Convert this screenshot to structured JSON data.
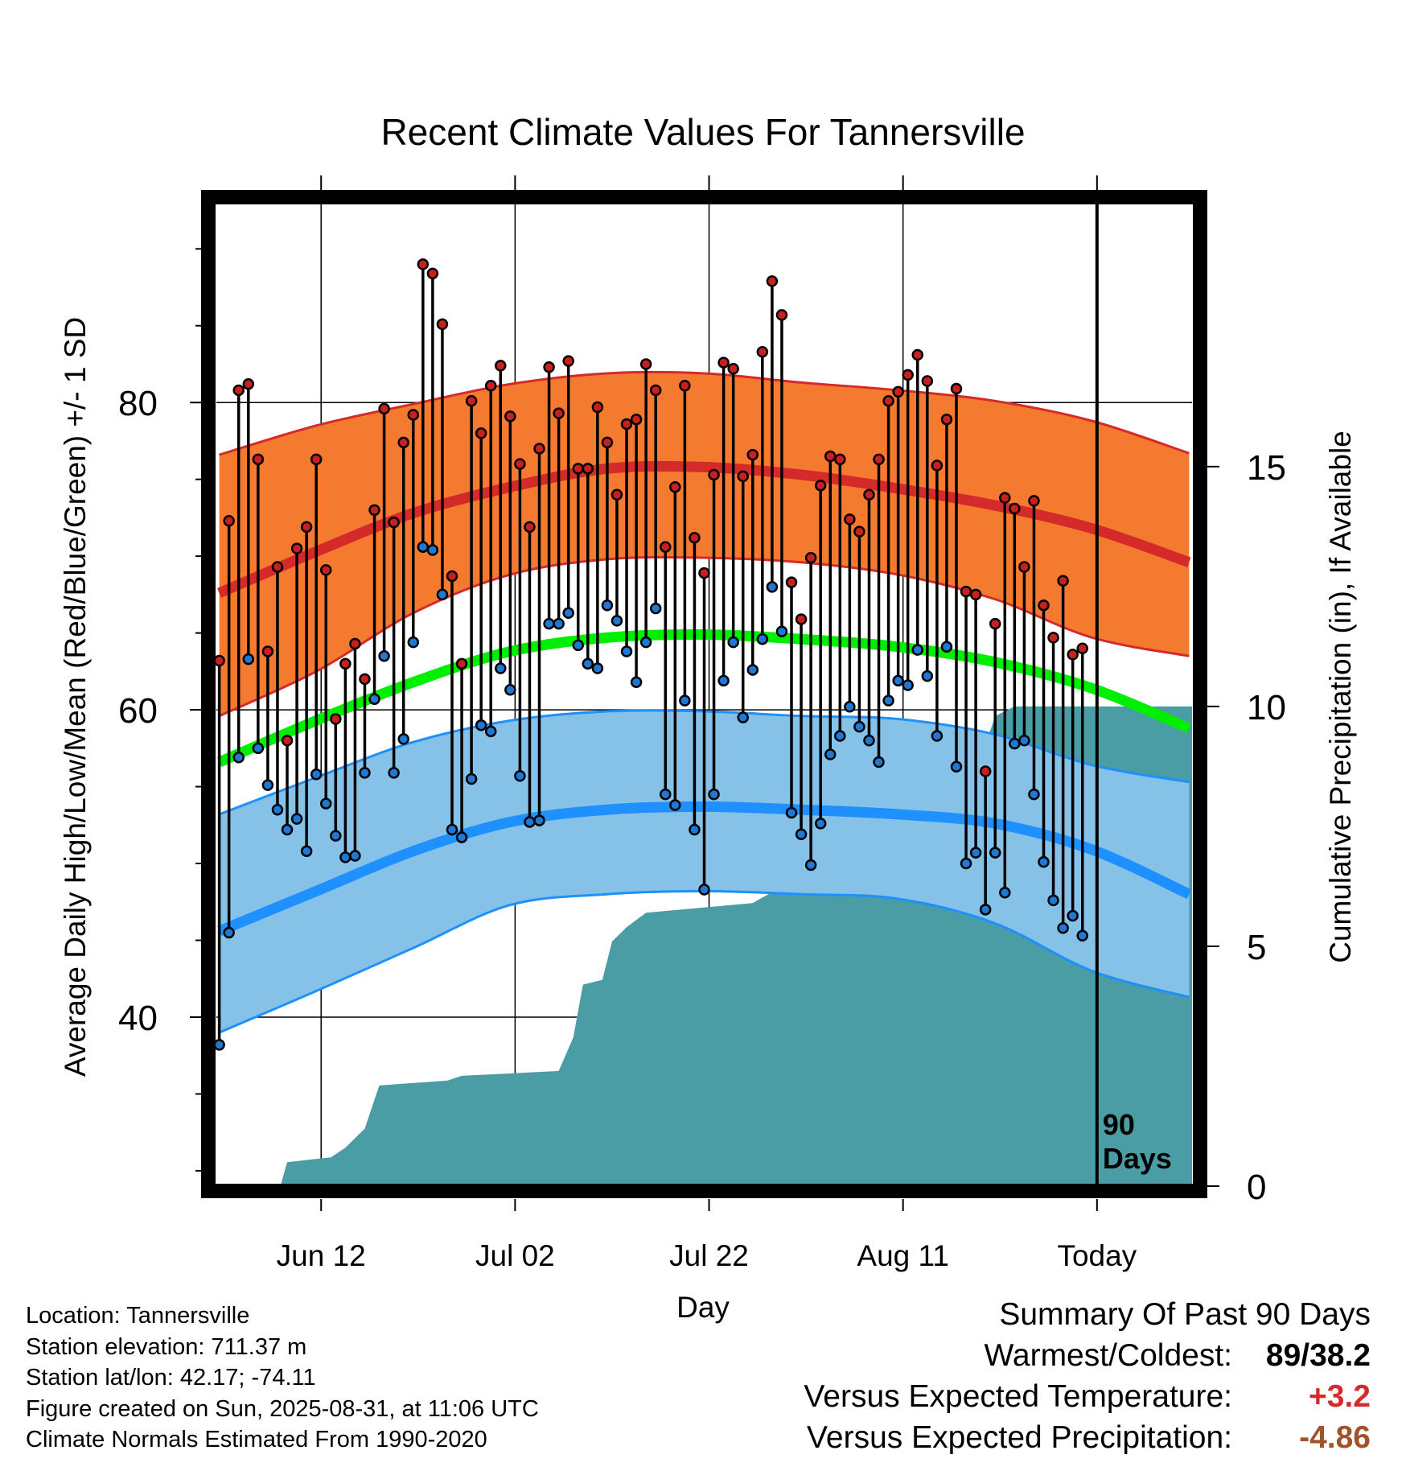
{
  "chart_data": {
    "type": "line",
    "title": "Recent Climate Values For Tannersville",
    "xlabel": "Day",
    "ylabel": "Average Daily High/Low/Mean (Red/Blue/Green) +/- 1 SD",
    "y2label": "Cumulative Precipitation (in), If Available",
    "ylim": [
      29,
      93
    ],
    "y2lim": [
      0,
      20.5
    ],
    "xlim": [
      -0.3,
      100.3
    ],
    "y_ticks": [
      40,
      60,
      80
    ],
    "y_ticks_minor": [
      30,
      35,
      45,
      50,
      55,
      65,
      70,
      75,
      85,
      90
    ],
    "y2_ticks": [
      0,
      5,
      10,
      15
    ],
    "x_ticks": [
      {
        "day": 10.5,
        "label": "Jun 12"
      },
      {
        "day": 30.5,
        "label": "Jul 02"
      },
      {
        "day": 50.5,
        "label": "Jul 22"
      },
      {
        "day": 70.5,
        "label": "Aug 11"
      },
      {
        "day": 90.5,
        "label": "Today"
      }
    ],
    "today_label": "90\nDays",
    "grid": true,
    "colors": {
      "high_band": "#f47a30",
      "high_line": "#d42a2a",
      "low_band": "#86c1e8",
      "low_line": "#1e90ff",
      "mean_line": "#00ee00",
      "precip": "#4a9ca5",
      "high_point": "#c8201e",
      "low_point": "#1e78d4"
    },
    "normal_days": [
      0,
      10,
      20,
      30,
      40,
      50,
      60,
      70,
      80,
      90,
      100
    ],
    "normal_high": [
      67.6,
      70.3,
      72.8,
      74.5,
      75.7,
      75.8,
      75.3,
      74.4,
      73.3,
      71.8,
      69.6
    ],
    "normal_high_upper": [
      76.6,
      78.5,
      79.9,
      81.2,
      81.9,
      81.9,
      81.3,
      80.8,
      80.1,
      78.8,
      76.7
    ],
    "normal_high_lower": [
      59.6,
      62.5,
      66.3,
      68.8,
      69.8,
      69.9,
      69.6,
      68.8,
      67.2,
      64.7,
      63.5
    ],
    "normal_mean": [
      56.6,
      59.3,
      61.8,
      63.8,
      64.7,
      64.9,
      64.6,
      64.1,
      63.1,
      61.4,
      58.8
    ],
    "normal_low": [
      45.6,
      48.2,
      50.8,
      52.7,
      53.5,
      53.7,
      53.5,
      53.2,
      52.6,
      50.9,
      48.0
    ],
    "normal_low_upper": [
      53.2,
      55.6,
      57.9,
      59.3,
      59.9,
      59.9,
      59.6,
      59.4,
      58.4,
      56.4,
      55.3
    ],
    "normal_low_lower": [
      39.0,
      41.7,
      44.5,
      47.3,
      48.0,
      48.2,
      48.0,
      47.7,
      46.1,
      43.0,
      41.3
    ],
    "highs": [
      63.2,
      72.3,
      80.8,
      81.2,
      76.3,
      63.8,
      69.3,
      58.0,
      70.5,
      71.9,
      76.3,
      69.1,
      59.4,
      63.0,
      64.3,
      62.0,
      73.0,
      79.6,
      72.2,
      77.4,
      79.2,
      89.0,
      88.4,
      85.1,
      68.7,
      63.0,
      80.1,
      78.0,
      81.1,
      82.4,
      79.1,
      76.0,
      71.9,
      77.0,
      82.3,
      79.3,
      82.7,
      75.7,
      75.7,
      79.7,
      77.4,
      74.0,
      78.6,
      78.9,
      82.5,
      80.8,
      70.6,
      74.5,
      81.1,
      71.2,
      68.9,
      75.3,
      82.6,
      82.2,
      75.2,
      76.6,
      83.3,
      87.9,
      85.7,
      68.3,
      65.9,
      69.9,
      74.6,
      76.5,
      76.3,
      72.4,
      71.6,
      74.0,
      76.3,
      80.1,
      80.7,
      81.8,
      83.1,
      81.4,
      75.9,
      78.9,
      80.9,
      67.7,
      67.5,
      56.0,
      65.6,
      73.8,
      73.1,
      69.3,
      73.6,
      66.8,
      64.7,
      68.4,
      63.6,
      64.0
    ],
    "lows": [
      38.2,
      45.5,
      56.9,
      63.3,
      57.5,
      55.1,
      53.5,
      52.2,
      52.9,
      50.8,
      55.8,
      53.9,
      51.8,
      50.4,
      50.5,
      55.9,
      60.7,
      63.5,
      55.9,
      58.1,
      64.4,
      70.6,
      70.4,
      67.5,
      52.2,
      51.7,
      55.5,
      59.0,
      58.6,
      62.7,
      61.3,
      55.7,
      52.7,
      52.8,
      65.6,
      65.6,
      66.3,
      64.2,
      63.0,
      62.7,
      66.8,
      65.8,
      63.8,
      61.8,
      64.4,
      66.6,
      54.5,
      53.8,
      60.6,
      52.2,
      48.3,
      54.5,
      61.9,
      64.4,
      59.5,
      62.6,
      64.6,
      68.0,
      65.1,
      53.3,
      51.9,
      49.9,
      52.6,
      57.1,
      58.3,
      60.2,
      58.9,
      58.0,
      56.6,
      60.6,
      61.9,
      61.6,
      63.9,
      62.2,
      58.3,
      64.1,
      56.3,
      50.0,
      50.7,
      47.0,
      50.7,
      48.1,
      57.8,
      58.0,
      54.5,
      50.1,
      47.6,
      45.8,
      46.6,
      45.3
    ],
    "precip_cumulative": [
      {
        "day": 6.3,
        "value": 0.0
      },
      {
        "day": 7.0,
        "value": 0.5
      },
      {
        "day": 11.5,
        "value": 0.6
      },
      {
        "day": 13.0,
        "value": 0.8
      },
      {
        "day": 15.0,
        "value": 1.2
      },
      {
        "day": 16.5,
        "value": 2.1
      },
      {
        "day": 23.5,
        "value": 2.2
      },
      {
        "day": 25.0,
        "value": 2.3
      },
      {
        "day": 35.0,
        "value": 2.4
      },
      {
        "day": 36.5,
        "value": 3.1
      },
      {
        "day": 37.5,
        "value": 4.2
      },
      {
        "day": 39.5,
        "value": 4.3
      },
      {
        "day": 40.5,
        "value": 5.1
      },
      {
        "day": 42.0,
        "value": 5.4
      },
      {
        "day": 44.0,
        "value": 5.7
      },
      {
        "day": 55.0,
        "value": 5.9
      },
      {
        "day": 58.5,
        "value": 6.3
      },
      {
        "day": 59.5,
        "value": 8.1
      },
      {
        "day": 72.0,
        "value": 8.2
      },
      {
        "day": 75.0,
        "value": 8.3
      },
      {
        "day": 75.8,
        "value": 9.1
      },
      {
        "day": 79.0,
        "value": 9.2
      },
      {
        "day": 80.0,
        "value": 9.8
      },
      {
        "day": 82.0,
        "value": 10.0
      },
      {
        "day": 100.3,
        "value": 10.0
      }
    ]
  },
  "meta": {
    "location": "Location: Tannersville",
    "elevation": "Station elevation: 711.37 m",
    "latlon": "Station lat/lon: 42.17; -74.11",
    "created": "Figure created on Sun, 2025-08-31, at 11:06 UTC",
    "normals": "Climate Normals Estimated From 1990-2020"
  },
  "summary": {
    "heading": "Summary Of Past 90 Days",
    "warm_cold_label": "Warmest/Coldest:",
    "warm_cold_value": "89/38.2",
    "temp_label": "Versus Expected Temperature:",
    "temp_value": "+3.2",
    "temp_color": "#d42a2a",
    "precip_label": "Versus Expected Precipitation:",
    "precip_value": "-4.86",
    "precip_color": "#a0522d"
  }
}
